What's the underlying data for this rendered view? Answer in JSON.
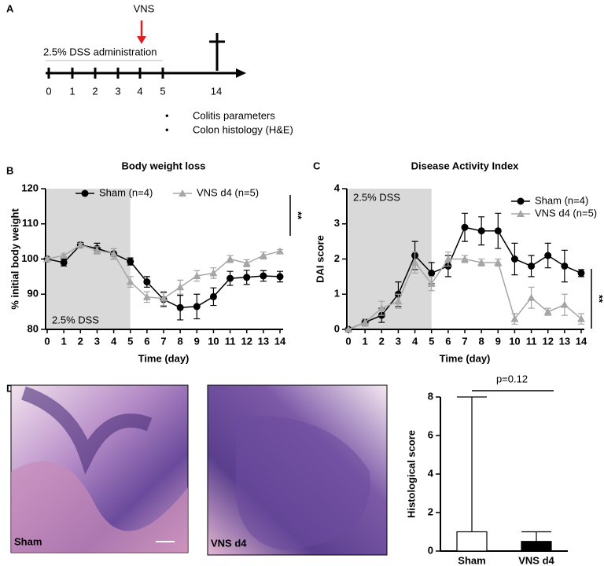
{
  "panel_labels": [
    "A",
    "B",
    "C",
    "D"
  ],
  "timeline": {
    "event": "VNS",
    "bar_label": "2.5% DSS administration",
    "ticks": [
      0,
      1,
      2,
      3,
      4,
      5,
      14
    ],
    "outcomes": [
      "Colitis parameters",
      "Colon histology (H&E)"
    ]
  },
  "images": [
    {
      "label": "Sham"
    },
    {
      "label": "VNS d4"
    }
  ],
  "chart_data": [
    {
      "type": "line",
      "title": "Body weight loss",
      "xlabel": "Time (day)",
      "ylabel": "% initial body weight",
      "x": [
        0,
        1,
        2,
        3,
        4,
        5,
        6,
        7,
        8,
        9,
        10,
        11,
        12,
        13,
        14
      ],
      "xlim": [
        0,
        14
      ],
      "xticks": [
        0,
        1,
        2,
        3,
        4,
        5,
        6,
        7,
        8,
        9,
        10,
        11,
        12,
        13,
        14
      ],
      "ylim": [
        80,
        120
      ],
      "yticks": [
        80,
        90,
        100,
        110,
        120
      ],
      "shade": [
        0,
        5
      ],
      "shade_label": "2.5% DSS",
      "legend": "top",
      "annotation": "**",
      "series": [
        {
          "name": "Sham (n=4)",
          "color": "#000000",
          "marker": "circle",
          "values": [
            100,
            99,
            104,
            103,
            101.5,
            99.3,
            93.5,
            88.5,
            86.2,
            86.5,
            89.3,
            94.5,
            94.8,
            95.2,
            95
          ],
          "errors": [
            0.5,
            1,
            0.7,
            1.5,
            1.5,
            1,
            1.5,
            2,
            3.5,
            3.5,
            2.5,
            2,
            2,
            1.5,
            1.5
          ]
        },
        {
          "name": "VNS d4 (n=5)",
          "color": "#a6a6a6",
          "marker": "triangle",
          "values": [
            100,
            101,
            104,
            102.5,
            101.5,
            93.5,
            89.2,
            88.8,
            92,
            95.2,
            96,
            100,
            98.8,
            101,
            102.2
          ],
          "errors": [
            0.5,
            0.5,
            0.5,
            1,
            1.5,
            1.5,
            1.5,
            2,
            2,
            1.5,
            1.5,
            1,
            1,
            1,
            0.5
          ]
        }
      ]
    },
    {
      "type": "line",
      "title": "Disease Activity Index",
      "xlabel": "Time (day)",
      "ylabel": "DAI score",
      "x": [
        0,
        1,
        2,
        3,
        4,
        5,
        6,
        7,
        8,
        9,
        10,
        11,
        12,
        13,
        14
      ],
      "xlim": [
        0,
        14
      ],
      "xticks": [
        0,
        1,
        2,
        3,
        4,
        5,
        6,
        7,
        8,
        9,
        10,
        11,
        12,
        13,
        14
      ],
      "ylim": [
        0,
        4
      ],
      "yticks": [
        0,
        1,
        2,
        3,
        4
      ],
      "shade": [
        0,
        5
      ],
      "shade_label": "2.5% DSS",
      "legend": "upper right",
      "annotation": "**",
      "series": [
        {
          "name": "Sham (n=4)",
          "color": "#000000",
          "marker": "circle",
          "values": [
            0,
            0.2,
            0.4,
            1.0,
            2.1,
            1.6,
            1.8,
            2.9,
            2.8,
            2.8,
            2.0,
            1.8,
            2.1,
            1.8,
            1.6
          ],
          "errors": [
            0,
            0.1,
            0.2,
            0.35,
            0.4,
            0.3,
            0.3,
            0.4,
            0.4,
            0.5,
            0.45,
            0.3,
            0.35,
            0.45,
            0.1
          ]
        },
        {
          "name": "VNS d4 (n=5)",
          "color": "#a6a6a6",
          "marker": "triangle",
          "values": [
            0,
            0.2,
            0.6,
            0.8,
            1.9,
            1.3,
            2.0,
            2.0,
            1.9,
            1.9,
            0.3,
            0.9,
            0.5,
            0.7,
            0.3
          ],
          "errors": [
            0,
            0.1,
            0.2,
            0.2,
            0.3,
            0.2,
            0.2,
            0.1,
            0.1,
            0.1,
            0.15,
            0.3,
            0.1,
            0.3,
            0.15
          ]
        }
      ]
    },
    {
      "type": "bar",
      "ylabel": "Histological score",
      "categories": [
        "Sham",
        "VNS d4"
      ],
      "values": [
        1,
        0.5
      ],
      "max": [
        8,
        1
      ],
      "colors": [
        "#ffffff",
        "#000000"
      ],
      "ylim": [
        0,
        8
      ],
      "yticks": [
        0,
        2,
        4,
        6,
        8
      ],
      "annotation": "p=0.12"
    }
  ]
}
